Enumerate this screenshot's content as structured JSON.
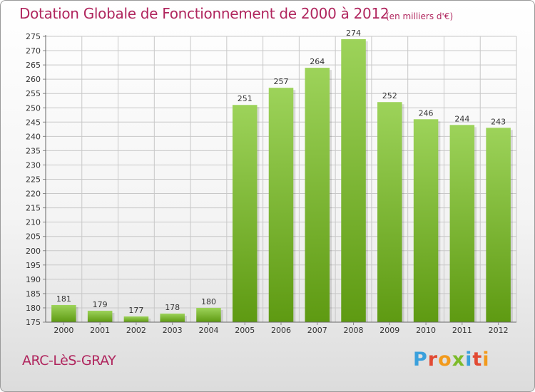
{
  "header": {
    "title": "Dotation Globale de Fonctionnement de 2000 à 2012",
    "unit": "(en milliers d'€)"
  },
  "footer": {
    "commune": "ARC-LèS-GRAY",
    "brand": "Proxiti"
  },
  "colors": {
    "title": "#b0265e",
    "bar_top": "#9dd35a",
    "bar_bottom": "#5e9a12",
    "grid": "#c8c8c8",
    "brand_letters": [
      "#3aa0dc",
      "#e24a33",
      "#f29a1c",
      "#7cbb2a",
      "#3aa0dc",
      "#e24a33",
      "#f29a1c"
    ]
  },
  "chart_data": {
    "type": "bar",
    "title": "Dotation Globale de Fonctionnement de 2000 à 2012",
    "subtitle": "(en milliers d'€)",
    "xlabel": "",
    "ylabel": "",
    "categories": [
      "2000",
      "2001",
      "2002",
      "2003",
      "2004",
      "2005",
      "2006",
      "2007",
      "2008",
      "2009",
      "2010",
      "2011",
      "2012"
    ],
    "values": [
      181,
      179,
      177,
      178,
      180,
      251,
      257,
      264,
      274,
      252,
      246,
      244,
      243
    ],
    "ylim": [
      175,
      275
    ],
    "yticks": [
      175,
      180,
      185,
      190,
      195,
      200,
      205,
      210,
      215,
      220,
      225,
      230,
      235,
      240,
      245,
      250,
      255,
      260,
      265,
      270,
      275
    ],
    "grid": true,
    "legend": "none"
  }
}
